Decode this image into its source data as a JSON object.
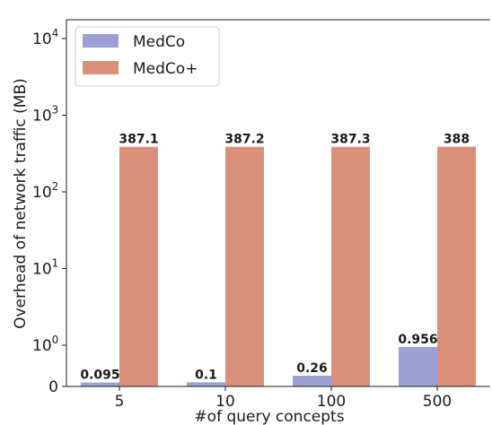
{
  "chart_data": {
    "type": "bar",
    "xlabel": "#of query concepts",
    "ylabel": "Overhead of network traffic (MB)",
    "yscale": "symlog",
    "linthresh": 1,
    "ylim": [
      0,
      10000
    ],
    "yticks": [
      {
        "value": 0,
        "base": "0",
        "exp": ""
      },
      {
        "value": 1,
        "base": "10",
        "exp": "0"
      },
      {
        "value": 10,
        "base": "10",
        "exp": "1"
      },
      {
        "value": 100,
        "base": "10",
        "exp": "2"
      },
      {
        "value": 1000,
        "base": "10",
        "exp": "3"
      },
      {
        "value": 10000,
        "base": "10",
        "exp": "4"
      }
    ],
    "categories": [
      "5",
      "10",
      "100",
      "500"
    ],
    "series": [
      {
        "name": "MedCo",
        "color": "#9c9fd4",
        "values": [
          0.095,
          0.1,
          0.26,
          0.956
        ],
        "labels": [
          "0.095",
          "0.1",
          "0.26",
          "0.956"
        ]
      },
      {
        "name": "MedCo+",
        "color": "#d98f78",
        "values": [
          387.1,
          387.2,
          387.3,
          388
        ],
        "labels": [
          "387.1",
          "387.2",
          "387.3",
          "388"
        ]
      }
    ],
    "legend_position": "top-left",
    "grid": false
  }
}
